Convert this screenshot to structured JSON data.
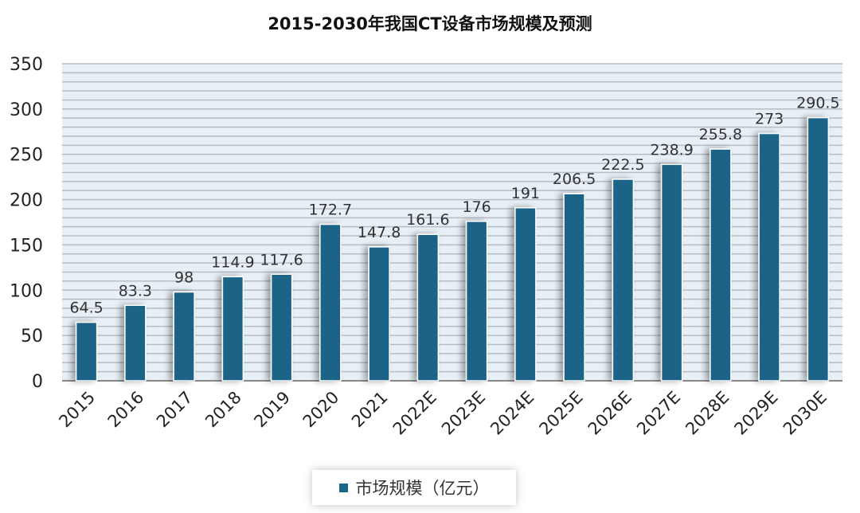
{
  "chart_data": {
    "type": "bar",
    "title": "2015-2030年我国CT设备市场规模及预测",
    "categories": [
      "2015",
      "2016",
      "2017",
      "2018",
      "2019",
      "2020",
      "2021",
      "2022E",
      "2023E",
      "2024E",
      "2025E",
      "2026E",
      "2027E",
      "2028E",
      "2029E",
      "2030E"
    ],
    "series": [
      {
        "name": "市场规模（亿元）",
        "values": [
          64.5,
          83.3,
          98,
          114.9,
          117.6,
          172.7,
          147.8,
          161.6,
          176,
          191,
          206.5,
          222.5,
          238.9,
          255.8,
          273,
          290.5
        ],
        "labels": [
          "64.5",
          "83.3",
          "98",
          "114.9",
          "117.6",
          "172.7",
          "147.8",
          "161.6",
          "176",
          "191",
          "206.5",
          "222.5",
          "238.9",
          "255.8",
          "273",
          "290.5"
        ]
      }
    ],
    "ylim": [
      0,
      350
    ],
    "yticks": [
      0,
      50,
      100,
      150,
      200,
      250,
      300,
      350
    ],
    "grid": true,
    "legend": "bottom",
    "colors": {
      "bar": "#1a6488",
      "plot_bg": "#e8f0f7",
      "grid": "#b8bcc4"
    }
  }
}
